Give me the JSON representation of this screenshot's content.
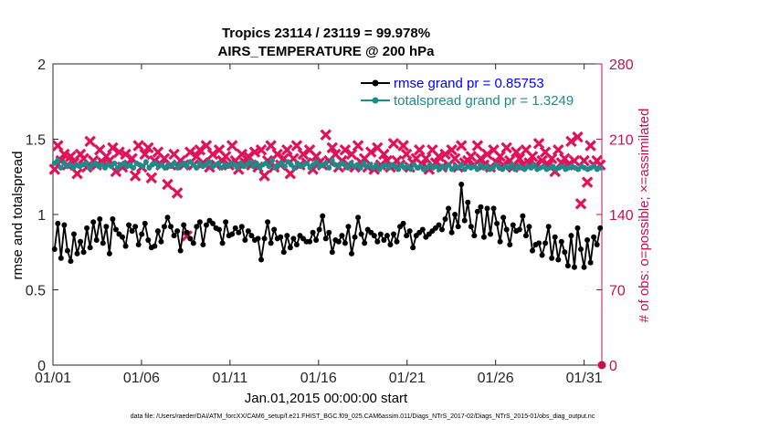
{
  "chart_data": {
    "type": "line",
    "title": "Tropics 23114 / 23119 = 99.978%",
    "subtitle": "AIRS_TEMPERATURE @ 200 hPa",
    "xlabel": "Jan.01,2015 00:00:00 start",
    "ylabel": "rmse and totalspread",
    "ylabel_right": "# of obs: o=possible; ×=assimilated",
    "xlim": [
      1,
      32
    ],
    "ylim": [
      0,
      2
    ],
    "ylim_right": [
      0,
      280
    ],
    "x_ticks": [
      1,
      6,
      11,
      16,
      21,
      26,
      31
    ],
    "x_tick_labels": [
      "01/01",
      "01/06",
      "01/11",
      "01/16",
      "01/21",
      "01/26",
      "01/31"
    ],
    "y_ticks": [
      0,
      0.5,
      1,
      1.5,
      2
    ],
    "y_tick_labels": [
      "0",
      "0.5",
      "1",
      "1.5",
      "2"
    ],
    "y_ticks_right": [
      0,
      70,
      140,
      210,
      280
    ],
    "y_tick_labels_right": [
      "0",
      "70",
      "140",
      "210",
      "280"
    ],
    "legend_location": "top-right",
    "series": [
      {
        "name": "rmse grand pr = 0.85753",
        "axis": "left",
        "color": "#000000",
        "marker": "circle",
        "values": [
          0.77,
          0.94,
          0.71,
          0.93,
          0.76,
          0.69,
          0.87,
          0.74,
          0.82,
          0.75,
          0.91,
          0.78,
          0.95,
          0.83,
          0.97,
          0.81,
          0.92,
          0.74,
          0.97,
          0.9,
          0.87,
          0.85,
          0.79,
          0.93,
          0.89,
          0.92,
          0.8,
          0.87,
          0.94,
          0.83,
          0.78,
          0.79,
          0.89,
          0.82,
          0.92,
          0.98,
          0.92,
          0.86,
          0.89,
          0.76,
          0.93,
          0.88,
          0.84,
          0.81,
          0.92,
          0.95,
          0.8,
          0.93,
          0.96,
          0.94,
          0.91,
          0.9,
          0.81,
          0.95,
          0.86,
          0.87,
          0.91,
          0.88,
          0.92,
          0.83,
          0.89,
          0.86,
          0.83,
          0.84,
          0.7,
          0.84,
          0.95,
          0.81,
          0.9,
          0.84,
          0.85,
          0.75,
          0.86,
          0.78,
          0.84,
          0.8,
          0.86,
          0.84,
          0.82,
          0.82,
          0.88,
          0.83,
          0.9,
          0.99,
          0.84,
          0.88,
          0.75,
          0.83,
          0.82,
          0.86,
          0.81,
          0.92,
          0.74,
          0.85,
          0.98,
          0.87,
          0.81,
          0.9,
          0.88,
          0.86,
          0.82,
          0.87,
          0.83,
          0.86,
          0.8,
          0.87,
          0.82,
          0.92,
          0.94,
          0.86,
          0.89,
          0.78,
          0.86,
          0.88,
          0.9,
          0.85,
          0.87,
          0.89,
          0.91,
          0.93,
          0.9,
          0.97,
          1.04,
          0.88,
          1.0,
          0.92,
          1.2,
          0.96,
          1.08,
          0.92,
          0.86,
          1.02,
          1.05,
          0.85,
          1.04,
          0.87,
          1.04,
          0.94,
          0.82,
          0.98,
          0.9,
          0.8,
          0.93,
          0.89,
          0.9,
          0.99,
          0.86,
          0.92,
          0.76,
          0.8,
          0.81,
          0.73,
          0.81,
          0.92,
          0.71,
          0.85,
          0.7,
          0.82,
          0.75,
          0.66,
          0.86,
          0.65,
          0.91,
          0.77,
          0.65,
          0.83,
          0.68,
          0.85,
          0.8,
          0.91
        ]
      },
      {
        "name": "totalspread grand pr = 1.3249",
        "axis": "left",
        "color": "#1f8a8a",
        "marker": "circle",
        "values": [
          1.34,
          1.36,
          1.31,
          1.34,
          1.32,
          1.33,
          1.31,
          1.33,
          1.32,
          1.33,
          1.34,
          1.31,
          1.33,
          1.34,
          1.32,
          1.33,
          1.31,
          1.33,
          1.32,
          1.34,
          1.31,
          1.33,
          1.34,
          1.32,
          1.33,
          1.31,
          1.34,
          1.33,
          1.32,
          1.35,
          1.31,
          1.33,
          1.34,
          1.32,
          1.33,
          1.31,
          1.33,
          1.32,
          1.34,
          1.31,
          1.33,
          1.34,
          1.32,
          1.35,
          1.33,
          1.31,
          1.34,
          1.32,
          1.33,
          1.35,
          1.32,
          1.33,
          1.34,
          1.31,
          1.33,
          1.32,
          1.34,
          1.33,
          1.31,
          1.34,
          1.32,
          1.33,
          1.35,
          1.32,
          1.34,
          1.31,
          1.33,
          1.34,
          1.32,
          1.36,
          1.31,
          1.33,
          1.34,
          1.32,
          1.35,
          1.33,
          1.31,
          1.34,
          1.32,
          1.33,
          1.34,
          1.31,
          1.33,
          1.35,
          1.32,
          1.33,
          1.34,
          1.31,
          1.36,
          1.33,
          1.32,
          1.34,
          1.33,
          1.31,
          1.34,
          1.32,
          1.33,
          1.31,
          1.34,
          1.32,
          1.33,
          1.31,
          1.33,
          1.3,
          1.32,
          1.33,
          1.31,
          1.33,
          1.32,
          1.3,
          1.33,
          1.31,
          1.32,
          1.3,
          1.33,
          1.31,
          1.32,
          1.3,
          1.31,
          1.33,
          1.31,
          1.32,
          1.3,
          1.32,
          1.31,
          1.33,
          1.3,
          1.32,
          1.31,
          1.33,
          1.3,
          1.32,
          1.31,
          1.32,
          1.3,
          1.33,
          1.31,
          1.32,
          1.3,
          1.31,
          1.33,
          1.31,
          1.3,
          1.32,
          1.31,
          1.33,
          1.3,
          1.32,
          1.31,
          1.3,
          1.32,
          1.31,
          1.33,
          1.3,
          1.31,
          1.32,
          1.3,
          1.31,
          1.32,
          1.3,
          1.31,
          1.32,
          1.3,
          1.31,
          1.32,
          1.31,
          1.3,
          1.32,
          1.31,
          1.3,
          1.31,
          1.32,
          1.3,
          1.31
        ]
      },
      {
        "name": "# of obs possible",
        "axis": "right",
        "color": "#c8104e",
        "marker": "circle",
        "values": [
          0
        ]
      },
      {
        "name": "# of obs assimilated",
        "axis": "right",
        "color": "#e0135a",
        "marker": "x",
        "values": [
          182,
          204,
          190,
          196,
          186,
          194,
          188,
          178,
          196,
          192,
          184,
          208,
          190,
          186,
          200,
          188,
          194,
          190,
          202,
          180,
          198,
          184,
          196,
          186,
          192,
          176,
          204,
          184,
          196,
          202,
          174,
          190,
          198,
          186,
          192,
          168,
          186,
          196,
          160,
          190,
          186,
          120,
          198,
          186,
          194,
          200,
          188,
          204,
          184,
          196,
          186,
          200,
          190,
          194,
          186,
          204,
          190,
          182,
          196,
          188,
          194,
          186,
          198,
          184,
          200,
          176,
          190,
          204,
          184,
          196,
          186,
          192,
          200,
          178,
          192,
          204,
          186,
          196,
          188,
          200,
          182,
          194,
          188,
          186,
          214,
          190,
          202,
          196,
          184,
          190,
          200,
          186,
          196,
          184,
          204,
          188,
          192,
          184,
          198,
          182,
          202,
          186,
          196,
          190,
          184,
          206,
          190,
          186,
          204,
          196,
          184,
          188,
          192,
          200,
          186,
          192,
          182,
          200,
          188,
          194,
          184,
          196,
          186,
          200,
          192,
          184,
          204,
          188,
          190,
          194,
          186,
          204,
          192,
          186,
          196,
          184,
          200,
          188,
          194,
          186,
          202,
          190,
          184,
          198,
          192,
          186,
          200,
          188,
          194,
          186,
          206,
          190,
          198,
          186,
          192,
          180,
          200,
          188,
          192,
          186,
          208,
          190,
          212,
          150,
          190,
          170,
          204,
          186,
          190,
          186
        ]
      }
    ]
  },
  "footer": {
    "datafile": "data file: /Users/raeder/DAI/ATM_forcXX/CAM6_setup/f.e21.FHIST_BGC.f09_025.CAM6assim.011/Diags_NTrS_2017-02/Diags_NTrS_2015-01/obs_diag_output.nc"
  }
}
